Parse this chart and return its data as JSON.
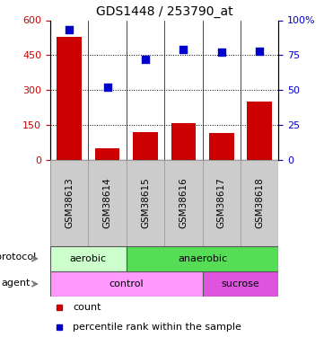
{
  "title": "GDS1448 / 253790_at",
  "samples": [
    "GSM38613",
    "GSM38614",
    "GSM38615",
    "GSM38616",
    "GSM38617",
    "GSM38618"
  ],
  "counts": [
    530,
    50,
    120,
    160,
    115,
    250
  ],
  "percentile_ranks": [
    93,
    52,
    72,
    79,
    77,
    78
  ],
  "count_color": "#cc0000",
  "percentile_color": "#0000cc",
  "left_ylim": [
    0,
    600
  ],
  "right_ylim": [
    0,
    100
  ],
  "left_yticks": [
    0,
    150,
    300,
    450,
    600
  ],
  "right_yticks": [
    0,
    25,
    50,
    75,
    100
  ],
  "right_yticklabels": [
    "0",
    "25",
    "50",
    "75",
    "100%"
  ],
  "dotted_grid_vals": [
    150,
    300,
    450
  ],
  "protocol_labels": [
    {
      "label": "aerobic",
      "start": 0,
      "end": 2,
      "color": "#ccffcc"
    },
    {
      "label": "anaerobic",
      "start": 2,
      "end": 6,
      "color": "#55dd55"
    }
  ],
  "agent_labels": [
    {
      "label": "control",
      "start": 0,
      "end": 4,
      "color": "#ff99ff"
    },
    {
      "label": "sucrose",
      "start": 4,
      "end": 6,
      "color": "#dd55dd"
    }
  ],
  "legend_items": [
    {
      "color": "#cc0000",
      "label": "count"
    },
    {
      "color": "#0000cc",
      "label": "percentile rank within the sample"
    }
  ],
  "bar_width": 0.65,
  "marker_size": 6
}
